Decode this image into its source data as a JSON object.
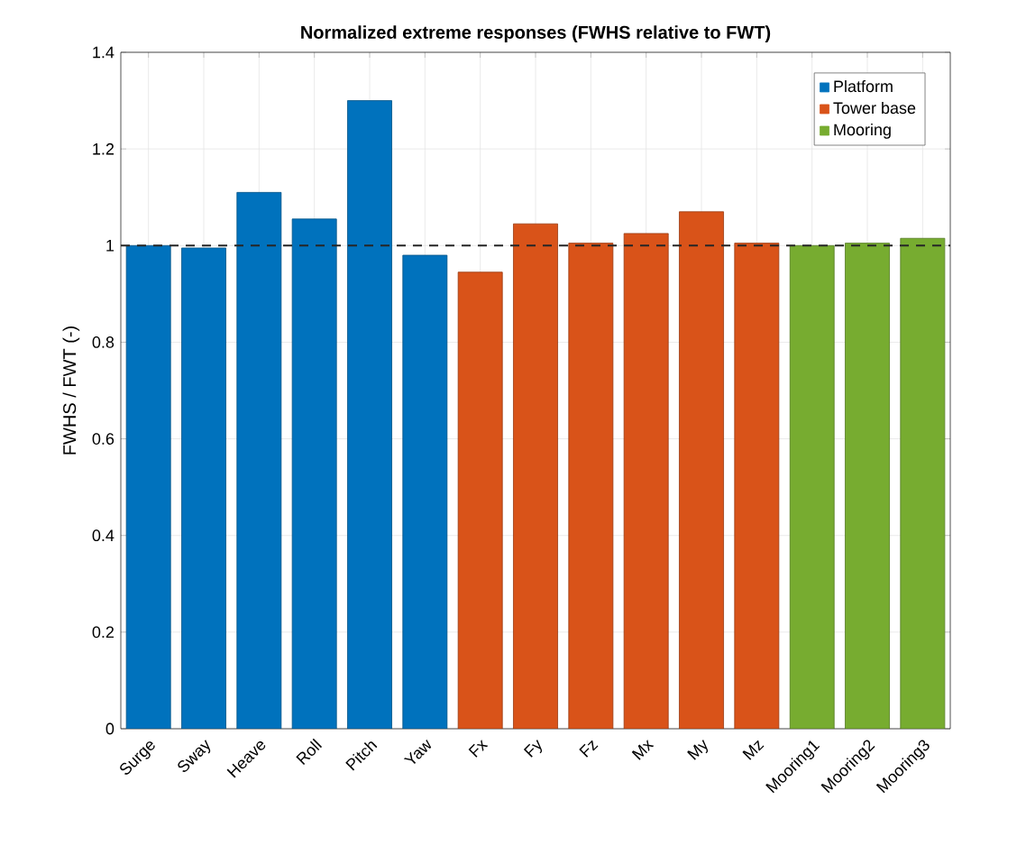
{
  "chart_data": {
    "type": "bar",
    "title": "Normalized extreme responses (FWHS relative to FWT)",
    "ylabel": "FWHS / FWT (-)",
    "categories": [
      "Surge",
      "Sway",
      "Heave",
      "Roll",
      "Pitch",
      "Yaw",
      "Fx",
      "Fy",
      "Fz",
      "Mx",
      "My",
      "Mz",
      "Mooring1",
      "Mooring2",
      "Mooring3"
    ],
    "series": [
      {
        "name": "Platform",
        "color": "#0072bd",
        "values": [
          1.0,
          0.995,
          1.11,
          1.055,
          1.3,
          0.98,
          null,
          null,
          null,
          null,
          null,
          null,
          null,
          null,
          null
        ]
      },
      {
        "name": "Tower base",
        "color": "#d95319",
        "values": [
          null,
          null,
          null,
          null,
          null,
          null,
          0.945,
          1.045,
          1.005,
          1.025,
          1.07,
          1.005,
          null,
          null,
          null
        ]
      },
      {
        "name": "Mooring",
        "color": "#77ac30",
        "values": [
          null,
          null,
          null,
          null,
          null,
          null,
          null,
          null,
          null,
          null,
          null,
          null,
          1.0,
          1.005,
          1.015
        ]
      }
    ],
    "ylim": [
      0,
      1.4
    ],
    "yticks": [
      0,
      0.2,
      0.4,
      0.6,
      0.8,
      1,
      1.2,
      1.4
    ],
    "ref_lines": [
      {
        "axis": "y",
        "value": 1,
        "color": "#262626",
        "line_style": "dashed"
      }
    ],
    "grid": true,
    "legend": "top right"
  }
}
